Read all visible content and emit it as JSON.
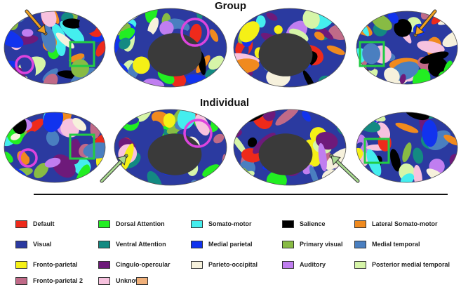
{
  "titles": {
    "group": "Group",
    "individual": "Individual"
  },
  "legend": [
    {
      "label": "Default",
      "color": "#ee2a1b"
    },
    {
      "label": "Dorsal Attention",
      "color": "#22ee22"
    },
    {
      "label": "Somato-motor",
      "color": "#44eeee"
    },
    {
      "label": "Salience",
      "color": "#000000"
    },
    {
      "label": "Lateral Somato-motor",
      "color": "#f08a1e"
    },
    {
      "label": "Visual",
      "color": "#2b3aa0"
    },
    {
      "label": "Ventral Attention",
      "color": "#138a82"
    },
    {
      "label": "Medial parietal",
      "color": "#1133ee"
    },
    {
      "label": "Primary visual",
      "color": "#88bb44"
    },
    {
      "label": "Medial temporal",
      "color": "#4a7fc0"
    },
    {
      "label": "Fronto-parietal",
      "color": "#f5f016"
    },
    {
      "label": "Cingulo-opercular",
      "color": "#6e1a7a"
    },
    {
      "label": "Parieto-occipital",
      "color": "#f6f1dc"
    },
    {
      "label": "Auditory",
      "color": "#c07ef0"
    },
    {
      "label": "Posterior medial temporal",
      "color": "#d6f5a8"
    },
    {
      "label": "Fronto-parietal 2",
      "color": "#c06a88"
    },
    {
      "label": "Unknown",
      "color": "#f7c2de"
    },
    {
      "label": "",
      "color": "#f0b07a"
    }
  ],
  "colors": {
    "highlight_square": "#22cc44",
    "highlight_circle": "#dd44dd",
    "group_arrow": "#f0a020",
    "individual_arrow": "#a8d890",
    "medial_wall": "#3a3a3a"
  }
}
